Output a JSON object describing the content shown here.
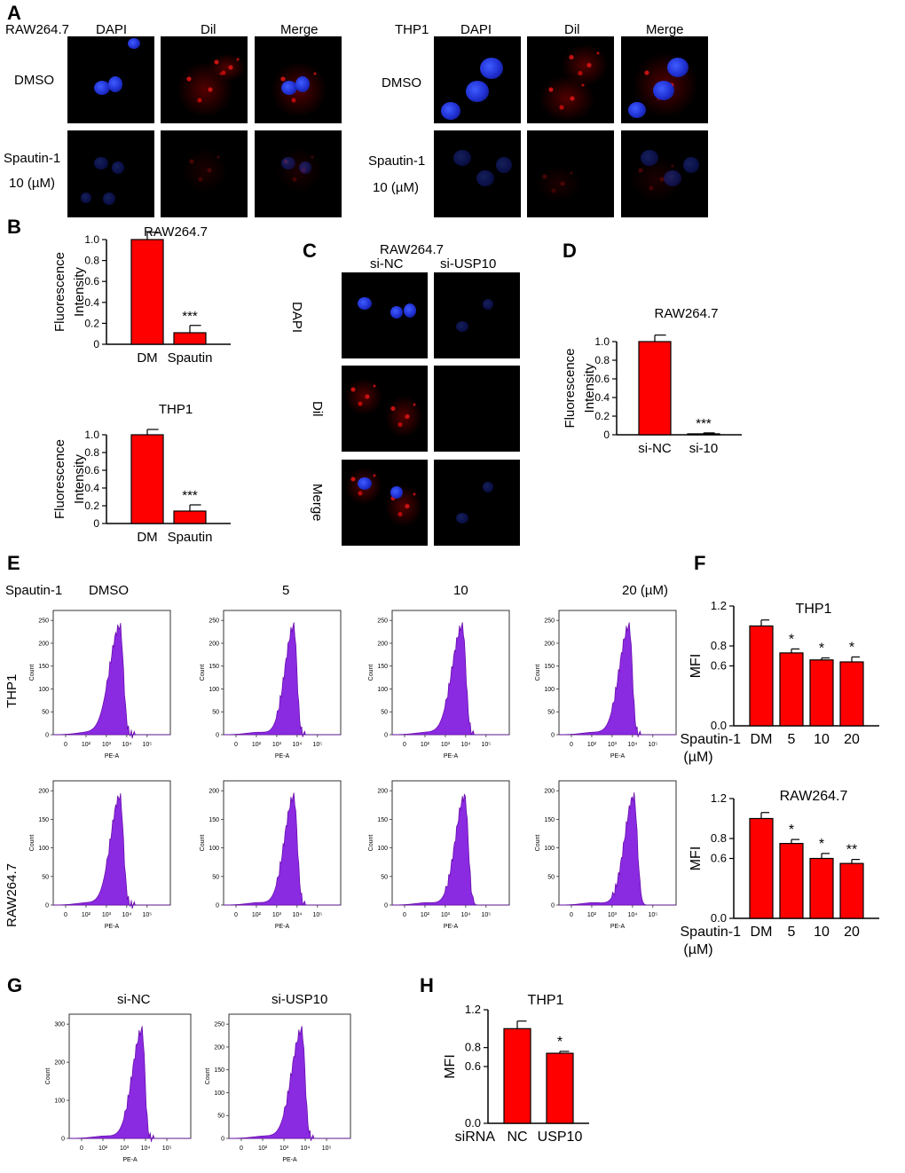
{
  "panels": {
    "A": {
      "label": "A",
      "left": {
        "cell": "RAW264.7",
        "channels": [
          "DAPI",
          "Dil",
          "Merge"
        ],
        "rows": [
          "DMSO",
          "Spautin-1",
          "10 (µM)"
        ]
      },
      "right": {
        "cell": "THP1",
        "channels": [
          "DAPI",
          "Dil",
          "Merge"
        ],
        "rows": [
          "DMSO",
          "Spautin-1",
          "10 (µM)"
        ]
      }
    },
    "B": {
      "label": "B"
    },
    "C": {
      "label": "C",
      "cell": "RAW264.7",
      "cols": [
        "si-NC",
        "si-USP10"
      ],
      "rows": [
        "DAPI",
        "Dil",
        "Merge"
      ]
    },
    "D": {
      "label": "D"
    },
    "E": {
      "label": "E",
      "treatment": "Spautin-1",
      "doses": [
        "DMSO",
        "5",
        "10",
        "20  (µM)"
      ],
      "rows": [
        "THP1",
        "RAW264.7"
      ]
    },
    "F": {
      "label": "F"
    },
    "G": {
      "label": "G",
      "cols": [
        "si-NC",
        "si-USP10"
      ]
    },
    "H": {
      "label": "H"
    }
  },
  "hist_axis": {
    "xlabel": "PE-A",
    "xticks": [
      "0",
      "10²",
      "10³",
      "10⁴",
      "10⁵"
    ],
    "ylabel": "Count",
    "yticks_250": [
      "0",
      "50",
      "100",
      "150",
      "200",
      "250"
    ],
    "yticks_200": [
      "0",
      "50",
      "100",
      "150",
      "200"
    ],
    "yticks_300": [
      "0",
      "100",
      "200",
      "300"
    ]
  },
  "chart_data": [
    {
      "id": "B-raw",
      "type": "bar",
      "title": "RAW264.7",
      "ylabel": "Fluorescence\nIntensity",
      "categories": [
        "DM",
        "Spautin"
      ],
      "values": [
        1.0,
        0.11
      ],
      "errors": [
        0.07,
        0.07
      ],
      "ylim": [
        0,
        1.0
      ],
      "yticks": [
        "0",
        "0.2",
        "0.4",
        "0.6",
        "0.8",
        "1.0"
      ],
      "annotations": [
        "",
        "***"
      ]
    },
    {
      "id": "B-thp",
      "type": "bar",
      "title": "THP1",
      "ylabel": "Fluorescence\nIntensity",
      "categories": [
        "DM",
        "Spautin"
      ],
      "values": [
        1.0,
        0.14
      ],
      "errors": [
        0.06,
        0.07
      ],
      "ylim": [
        0,
        1.0
      ],
      "yticks": [
        "0",
        "0.2",
        "0.4",
        "0.6",
        "0.8",
        "1.0"
      ],
      "annotations": [
        "",
        "***"
      ]
    },
    {
      "id": "D",
      "type": "bar",
      "title": "RAW264.7",
      "ylabel": "Fluorescence\nIntensity",
      "categories": [
        "si-NC",
        "si-10"
      ],
      "values": [
        1.0,
        0.01
      ],
      "errors": [
        0.07,
        0.01
      ],
      "ylim": [
        0,
        1.0
      ],
      "yticks": [
        "0",
        "0.2",
        "0.4",
        "0.6",
        "0.8",
        "1.0"
      ],
      "annotations": [
        "",
        "***"
      ]
    },
    {
      "id": "F-thp",
      "type": "bar",
      "title": "THP1",
      "ylabel": "MFI",
      "xprefix": "Spautin-1",
      "xunit": "(µM)",
      "categories": [
        "DM",
        "5",
        "10",
        "20"
      ],
      "values": [
        1.0,
        0.73,
        0.66,
        0.64
      ],
      "errors": [
        0.06,
        0.04,
        0.02,
        0.05
      ],
      "ylim": [
        0,
        1.2
      ],
      "yticks": [
        "0.0",
        "0.6",
        "0.8",
        "1.2"
      ],
      "annotations": [
        "",
        "*",
        "*",
        "*"
      ]
    },
    {
      "id": "F-raw",
      "type": "bar",
      "title": "RAW264.7",
      "ylabel": "MFI",
      "xprefix": "Spautin-1",
      "xunit": "(µM)",
      "categories": [
        "DM",
        "5",
        "10",
        "20"
      ],
      "values": [
        1.0,
        0.75,
        0.6,
        0.55
      ],
      "errors": [
        0.06,
        0.04,
        0.05,
        0.04
      ],
      "ylim": [
        0,
        1.2
      ],
      "yticks": [
        "0.0",
        "0.6",
        "0.8",
        "1.2"
      ],
      "annotations": [
        "",
        "*",
        "*",
        "**"
      ]
    },
    {
      "id": "H",
      "type": "bar",
      "title": "THP1",
      "ylabel": "MFI",
      "xprefix": "siRNA",
      "categories": [
        "NC",
        "USP10"
      ],
      "values": [
        1.0,
        0.74
      ],
      "errors": [
        0.08,
        0.02
      ],
      "ylim": [
        0,
        1.2
      ],
      "yticks": [
        "0.0",
        "0.6",
        "0.8",
        "1.2"
      ],
      "annotations": [
        "",
        "*"
      ]
    }
  ]
}
